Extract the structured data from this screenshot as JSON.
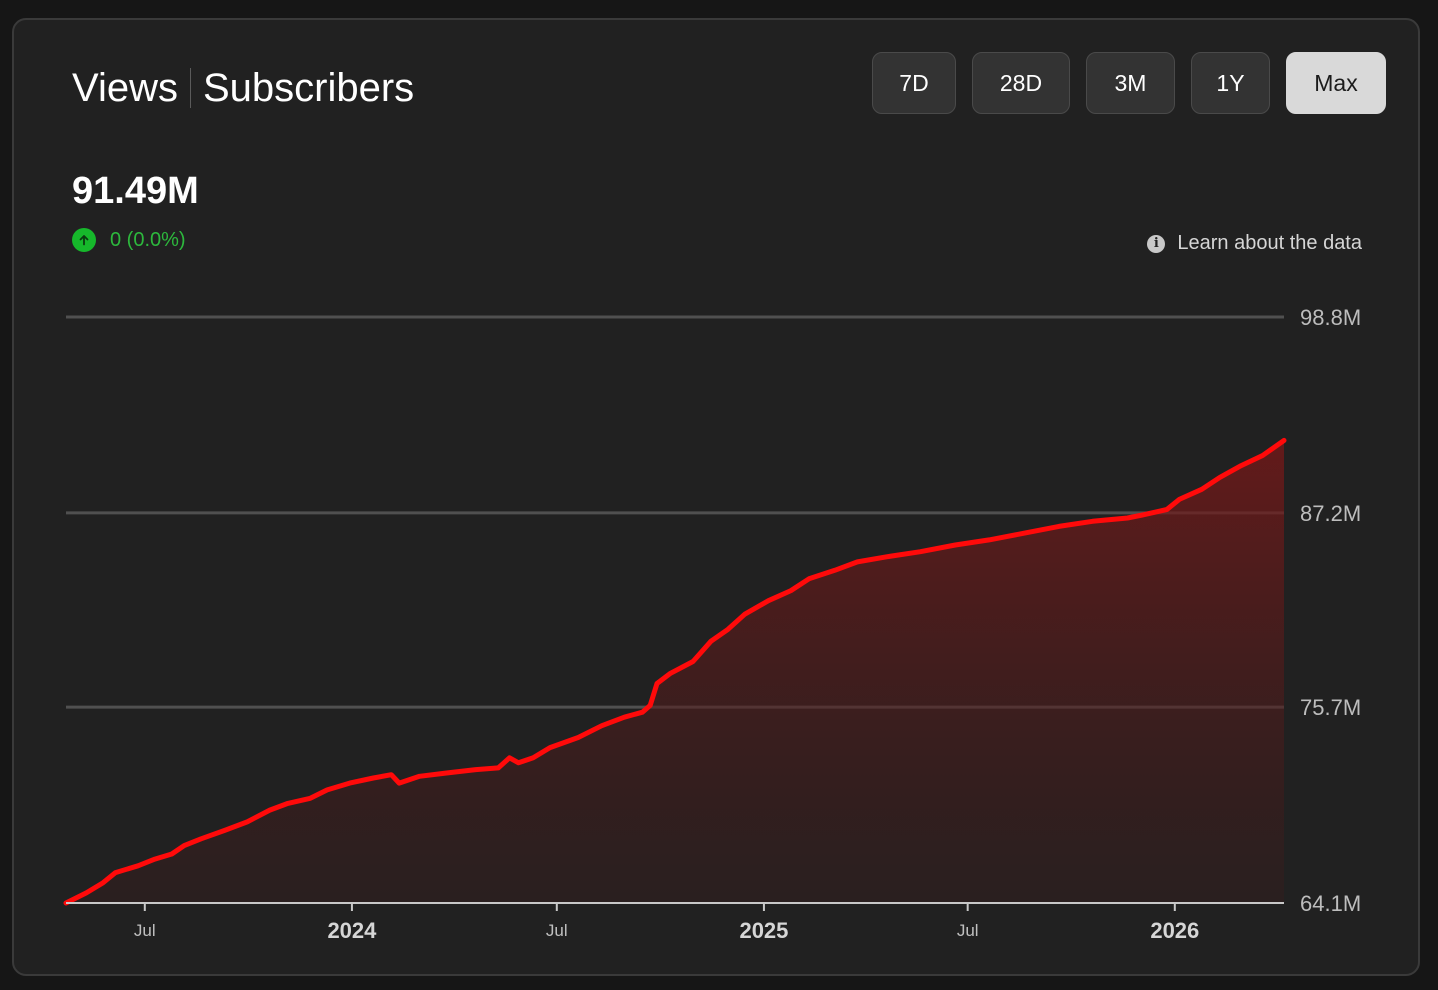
{
  "tabs": [
    {
      "label": "Views",
      "active": true
    },
    {
      "label": "Subscribers",
      "active": false
    }
  ],
  "ranges": [
    {
      "label": "7D",
      "active": false
    },
    {
      "label": "28D",
      "active": false
    },
    {
      "label": "3M",
      "active": false
    },
    {
      "label": "1Y",
      "active": false
    },
    {
      "label": "Max",
      "active": true
    }
  ],
  "summary": {
    "value": "91.49M",
    "change": "0 (0.0%)",
    "change_direction": "up"
  },
  "learn_link": "Learn about the data",
  "colors": {
    "line": "#ff0a0a",
    "up": "#16b82b",
    "card": "#212121",
    "grid": "#505050",
    "active_button": "#d9d9d9"
  },
  "chart_data": {
    "type": "area",
    "title": "",
    "xlabel": "",
    "ylabel": "",
    "x_range": [
      "2023-04-22",
      "2026-04-08"
    ],
    "ylim": [
      64.1,
      98.8
    ],
    "y_unit": "M",
    "y_ticks": [
      {
        "value": 64.1,
        "label": "64.1M"
      },
      {
        "value": 75.7,
        "label": "75.7M"
      },
      {
        "value": 87.2,
        "label": "87.2M"
      },
      {
        "value": 98.8,
        "label": "98.8M"
      }
    ],
    "x_ticks": [
      {
        "date": "2023-07-01",
        "label": "Jul",
        "major": false
      },
      {
        "date": "2024-01-01",
        "label": "2024",
        "major": true
      },
      {
        "date": "2024-07-01",
        "label": "Jul",
        "major": false
      },
      {
        "date": "2025-01-01",
        "label": "2025",
        "major": true
      },
      {
        "date": "2025-07-01",
        "label": "Jul",
        "major": false
      },
      {
        "date": "2026-01-01",
        "label": "2026",
        "major": true
      }
    ],
    "grid": true,
    "series": [
      {
        "points": [
          [
            "2023-04-22",
            64.1
          ],
          [
            "2023-05-10",
            64.7
          ],
          [
            "2023-05-25",
            65.3
          ],
          [
            "2023-06-05",
            65.9
          ],
          [
            "2023-06-25",
            66.3
          ],
          [
            "2023-07-10",
            66.7
          ],
          [
            "2023-07-25",
            67.0
          ],
          [
            "2023-08-05",
            67.5
          ],
          [
            "2023-08-20",
            67.9
          ],
          [
            "2023-09-10",
            68.4
          ],
          [
            "2023-09-30",
            68.9
          ],
          [
            "2023-10-20",
            69.6
          ],
          [
            "2023-11-05",
            70.0
          ],
          [
            "2023-11-25",
            70.3
          ],
          [
            "2023-12-10",
            70.8
          ],
          [
            "2023-12-30",
            71.2
          ],
          [
            "2024-01-20",
            71.5
          ],
          [
            "2024-02-05",
            71.7
          ],
          [
            "2024-02-12",
            71.2
          ],
          [
            "2024-03-01",
            71.6
          ],
          [
            "2024-03-25",
            71.8
          ],
          [
            "2024-04-20",
            72.0
          ],
          [
            "2024-05-10",
            72.1
          ],
          [
            "2024-05-20",
            72.7
          ],
          [
            "2024-05-28",
            72.4
          ],
          [
            "2024-06-10",
            72.7
          ],
          [
            "2024-06-25",
            73.3
          ],
          [
            "2024-07-20",
            73.9
          ],
          [
            "2024-08-10",
            74.6
          ],
          [
            "2024-08-30",
            75.1
          ],
          [
            "2024-09-15",
            75.4
          ],
          [
            "2024-09-22",
            75.8
          ],
          [
            "2024-09-28",
            77.1
          ],
          [
            "2024-10-10",
            77.7
          ],
          [
            "2024-10-30",
            78.4
          ],
          [
            "2024-11-15",
            79.6
          ],
          [
            "2024-11-30",
            80.3
          ],
          [
            "2024-12-15",
            81.2
          ],
          [
            "2025-01-05",
            82.0
          ],
          [
            "2025-01-25",
            82.6
          ],
          [
            "2025-02-10",
            83.3
          ],
          [
            "2025-03-05",
            83.8
          ],
          [
            "2025-03-25",
            84.3
          ],
          [
            "2025-04-20",
            84.6
          ],
          [
            "2025-05-20",
            84.9
          ],
          [
            "2025-06-20",
            85.3
          ],
          [
            "2025-07-20",
            85.6
          ],
          [
            "2025-08-20",
            86.0
          ],
          [
            "2025-09-20",
            86.4
          ],
          [
            "2025-10-20",
            86.7
          ],
          [
            "2025-11-20",
            86.9
          ],
          [
            "2025-12-05",
            87.1
          ],
          [
            "2025-12-25",
            87.4
          ],
          [
            "2026-01-05",
            88.0
          ],
          [
            "2026-01-25",
            88.6
          ],
          [
            "2026-02-10",
            89.3
          ],
          [
            "2026-03-01",
            90.0
          ],
          [
            "2026-03-20",
            90.6
          ],
          [
            "2026-04-08",
            91.49
          ]
        ]
      }
    ]
  }
}
